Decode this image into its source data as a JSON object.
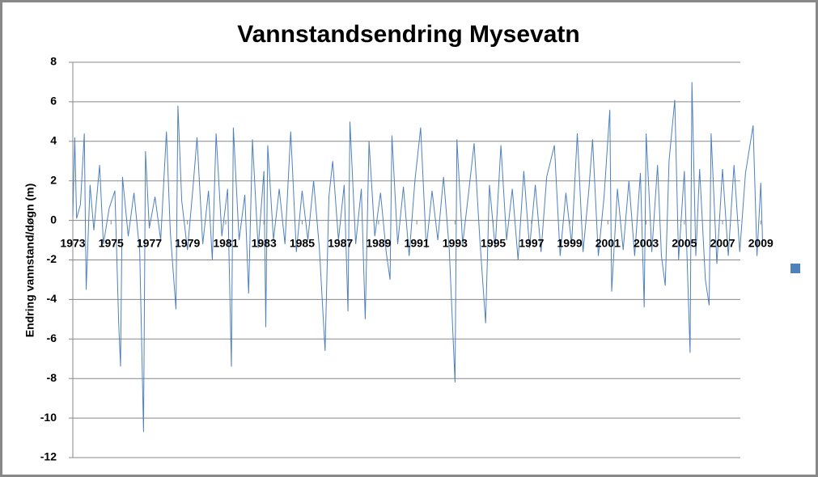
{
  "chart_data": {
    "type": "line",
    "title": "Vannstandsendring Mysevatn",
    "y_label": "Endring vannstand/døgn (m)",
    "x": [
      1973.0,
      1973.1,
      1973.2,
      1973.4,
      1973.6,
      1973.7,
      1973.9,
      1974.1,
      1974.4,
      1974.6,
      1974.9,
      1975.2,
      1975.4,
      1975.5,
      1975.6,
      1975.9,
      1976.2,
      1976.5,
      1976.7,
      1976.8,
      1977.0,
      1977.3,
      1977.6,
      1977.9,
      1978.1,
      1978.4,
      1978.5,
      1978.7,
      1979.0,
      1979.3,
      1979.5,
      1979.8,
      1980.1,
      1980.3,
      1980.5,
      1980.8,
      1981.1,
      1981.3,
      1981.4,
      1981.7,
      1982.0,
      1982.2,
      1982.4,
      1982.7,
      1983.0,
      1983.1,
      1983.2,
      1983.5,
      1983.8,
      1984.1,
      1984.4,
      1984.7,
      1985.0,
      1985.3,
      1985.6,
      1985.9,
      1986.2,
      1986.4,
      1986.6,
      1986.9,
      1987.2,
      1987.4,
      1987.5,
      1987.8,
      1988.1,
      1988.3,
      1988.5,
      1988.8,
      1989.1,
      1989.4,
      1989.6,
      1989.7,
      1990.0,
      1990.3,
      1990.6,
      1990.9,
      1991.2,
      1991.5,
      1991.8,
      1992.1,
      1992.4,
      1992.7,
      1993.0,
      1993.1,
      1993.4,
      1993.7,
      1994.0,
      1994.3,
      1994.6,
      1994.8,
      1995.1,
      1995.4,
      1995.7,
      1996.0,
      1996.3,
      1996.6,
      1996.9,
      1997.2,
      1997.5,
      1997.8,
      1998.2,
      1998.5,
      1998.8,
      1999.1,
      1999.4,
      1999.7,
      2000.0,
      2000.2,
      2000.5,
      2000.8,
      2001.1,
      2001.2,
      2001.5,
      2001.8,
      2002.1,
      2002.4,
      2002.7,
      2002.9,
      2003.0,
      2003.3,
      2003.6,
      2003.8,
      2004.0,
      2004.2,
      2004.5,
      2004.7,
      2005.0,
      2005.3,
      2005.4,
      2005.6,
      2005.8,
      2006.1,
      2006.3,
      2006.4,
      2006.7,
      2007.0,
      2007.3,
      2007.6,
      2007.9,
      2008.2,
      2008.6,
      2008.8,
      2009.0,
      2009.1
    ],
    "series": [
      {
        "color": "#4f81bd",
        "values": [
          0.2,
          4.2,
          0.1,
          0.8,
          4.4,
          -3.5,
          1.8,
          -0.5,
          2.8,
          -1.2,
          0.6,
          1.5,
          -5.2,
          -7.4,
          2.2,
          -0.8,
          1.4,
          -1.6,
          -10.7,
          3.5,
          -0.4,
          1.2,
          -1.0,
          4.5,
          -0.6,
          -4.5,
          5.8,
          1.0,
          -1.5,
          1.8,
          4.2,
          -1.2,
          1.5,
          -2.0,
          4.4,
          -0.8,
          1.6,
          -7.4,
          4.7,
          -1.0,
          1.3,
          -3.7,
          4.1,
          -1.4,
          2.5,
          -5.4,
          3.8,
          -1.0,
          1.6,
          -1.2,
          4.5,
          -1.6,
          1.5,
          -1.0,
          2.0,
          -1.4,
          -6.6,
          1.2,
          3.0,
          -1.0,
          1.8,
          -4.6,
          5.0,
          -1.2,
          1.6,
          -5.0,
          4.0,
          -0.8,
          1.4,
          -1.6,
          -3.0,
          4.3,
          -1.2,
          1.7,
          -1.8,
          2.0,
          4.7,
          -1.4,
          1.5,
          -1.0,
          2.2,
          -1.5,
          -8.2,
          4.1,
          -1.2,
          1.3,
          3.9,
          -1.0,
          -5.2,
          1.8,
          -1.4,
          3.8,
          -1.0,
          1.6,
          -2.0,
          2.5,
          -1.4,
          1.8,
          -1.6,
          2.2,
          3.8,
          -1.8,
          1.4,
          -1.2,
          4.4,
          -1.6,
          1.5,
          4.1,
          -1.8,
          1.2,
          5.6,
          -3.6,
          1.6,
          -1.5,
          2.0,
          -1.8,
          2.4,
          -4.4,
          4.4,
          -1.6,
          2.8,
          -1.8,
          -3.3,
          3.0,
          6.1,
          -2.0,
          2.5,
          -6.7,
          7.0,
          -1.8,
          2.6,
          -3.0,
          -4.3,
          4.4,
          -2.2,
          2.6,
          -1.8,
          2.8,
          -1.6,
          2.4,
          4.8,
          -1.8,
          1.9,
          -1.2
        ]
      }
    ],
    "xlim": [
      1973,
      2009.2
    ],
    "xticks": [
      1973,
      1975,
      1977,
      1979,
      1981,
      1983,
      1985,
      1987,
      1989,
      1991,
      1993,
      1995,
      1997,
      1999,
      2001,
      2003,
      2005,
      2007,
      2009
    ],
    "ylim": [
      -12,
      8
    ],
    "yticks": [
      -12,
      -10,
      -8,
      -6,
      -4,
      -2,
      0,
      2,
      4,
      6,
      8
    ],
    "grid": true,
    "legend": "right"
  }
}
